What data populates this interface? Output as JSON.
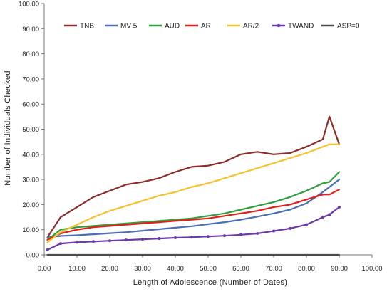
{
  "chart_data": {
    "type": "line",
    "title": "",
    "xlabel": "Length  of  Adolescence  (Number of Dates)",
    "ylabel": "Number  of  Individuals  Checked",
    "xlim": [
      0,
      100
    ],
    "ylim": [
      0,
      100
    ],
    "x_ticks": [
      "0.00",
      "10.00",
      "20.00",
      "30.00",
      "40.00",
      "50.00",
      "60.00",
      "70.00",
      "80.00",
      "90.00",
      "100.00"
    ],
    "y_ticks": [
      "0.00",
      "10.00",
      "20.00",
      "30.00",
      "40.00",
      "50.00",
      "60.00",
      "70.00",
      "80.00",
      "90.00",
      "100.00"
    ],
    "grid": false,
    "legend_position": "top",
    "x": [
      1,
      5,
      10,
      15,
      20,
      25,
      30,
      35,
      40,
      45,
      50,
      55,
      60,
      65,
      70,
      75,
      80,
      85,
      87,
      90
    ],
    "series": [
      {
        "name": "TNB",
        "color": "#8B2E2A",
        "marker": "none",
        "values": [
          7,
          15,
          19,
          23,
          25.5,
          28,
          29,
          30.5,
          33,
          35,
          35.5,
          37,
          40,
          41,
          40,
          40.5,
          43,
          46,
          55,
          44
        ]
      },
      {
        "name": "MV-5",
        "color": "#4A6FB5",
        "marker": "none",
        "values": [
          7,
          7.5,
          7.8,
          8.2,
          8.6,
          9,
          9.6,
          10.2,
          10.8,
          11.4,
          12.2,
          13,
          14,
          15.2,
          16.5,
          18,
          20.5,
          25,
          27,
          30
        ]
      },
      {
        "name": "AUD",
        "color": "#2E9E3E",
        "marker": "none",
        "values": [
          6,
          10,
          11,
          11.5,
          12,
          12.5,
          13,
          13.5,
          14,
          14.5,
          15.5,
          16.5,
          18,
          19.5,
          21,
          23,
          25.5,
          28.5,
          29,
          33
        ]
      },
      {
        "name": "AR",
        "color": "#E0201B",
        "marker": "none",
        "values": [
          6,
          8.5,
          10,
          11,
          11.5,
          12,
          12.5,
          13,
          13.5,
          14,
          14.5,
          15.5,
          16.5,
          17.5,
          19,
          20,
          22,
          24,
          24,
          26
        ]
      },
      {
        "name": "AR/2",
        "color": "#F5C12E",
        "marker": "none",
        "values": [
          5,
          9,
          12,
          15,
          17.5,
          19.5,
          21.5,
          23.5,
          25,
          27,
          28.5,
          30.5,
          32.5,
          34.5,
          36.5,
          38.5,
          40.5,
          43,
          44,
          44
        ]
      },
      {
        "name": "TWAND",
        "color": "#6A3BA6",
        "marker": "dot",
        "values": [
          2,
          4.5,
          5,
          5.3,
          5.6,
          5.9,
          6.2,
          6.5,
          6.8,
          7,
          7.3,
          7.6,
          8,
          8.5,
          9.5,
          10.5,
          12,
          15,
          16,
          19
        ]
      },
      {
        "name": "ASP=0",
        "color": "#4A4A4A",
        "marker": "none",
        "values": [
          0,
          0,
          0,
          0,
          0,
          0,
          0,
          0,
          0,
          0,
          0,
          0,
          0,
          0,
          0,
          0,
          0,
          0,
          0,
          0
        ]
      }
    ]
  }
}
